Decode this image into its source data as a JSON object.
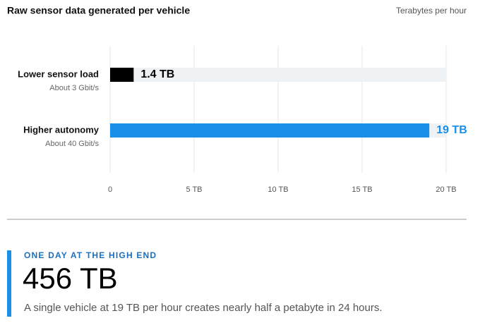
{
  "chart_data": {
    "type": "hbar",
    "title": "Raw sensor data generated per vehicle",
    "unit_label": "Terabytes per hour",
    "categories": [
      "Lower sensor load",
      "Higher autonomy"
    ],
    "sublabels": [
      "About 3 Gbit/s",
      "About 40 Gbit/s"
    ],
    "values": [
      1.4,
      19
    ],
    "value_labels": [
      "1.4 TB",
      "19 TB"
    ],
    "colors": [
      "#000000",
      "#1a8fe8"
    ],
    "xlim": [
      0,
      20
    ],
    "xticks": [
      0,
      {
        "value": 5,
        "label": "5 TB"
      },
      {
        "value": 10,
        "label": "10 TB"
      },
      {
        "value": 15,
        "label": "15 TB"
      },
      {
        "value": 20,
        "label": "20 TB"
      }
    ],
    "grid": true
  },
  "callout": {
    "eyebrow": "ONE DAY AT THE HIGH END",
    "headline": "456 TB",
    "text": "A single vehicle at 19 TB per hour creates nearly half a petabyte in 24 hours."
  }
}
